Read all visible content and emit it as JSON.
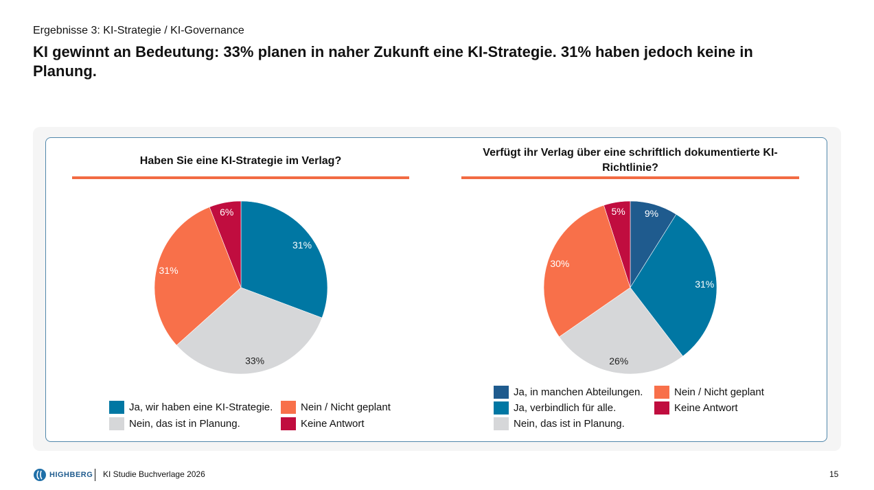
{
  "header": {
    "subtitle": "Ergebnisse 3: KI-Strategie / KI-Governance",
    "title": "KI gewinnt an Bedeutung: 33% planen in naher Zukunft eine KI-Strategie. 31% haben jedoch keine in Planung."
  },
  "colors": {
    "dark_blue": "#1f5b8e",
    "teal": "#0077a3",
    "grey": "#d6d7d9",
    "orange": "#f8704a",
    "red": "#c00d3f",
    "rule": "#f26b43"
  },
  "chart_data": [
    {
      "type": "pie",
      "title": "Haben Sie eine KI-Strategie im Verlag?",
      "start": "12 o'clock",
      "direction": "clockwise",
      "slices": [
        {
          "label": "Ja, wir haben eine KI-Strategie.",
          "value": 31,
          "display": "31%",
          "color": "#0077a3",
          "text_color": "#ffffff"
        },
        {
          "label": "Nein, das ist in Planung.",
          "value": 33,
          "display": "33%",
          "color": "#d6d7d9",
          "text_color": "#222222"
        },
        {
          "label": "Nein / Nicht geplant",
          "value": 31,
          "display": "31%",
          "color": "#f8704a",
          "text_color": "#ffffff"
        },
        {
          "label": "Keine Antwort",
          "value": 6,
          "display": "6%",
          "color": "#c00d3f",
          "text_color": "#ffffff"
        }
      ],
      "legend": "bottom"
    },
    {
      "type": "pie",
      "title": "Verfügt ihr Verlag über eine schriftlich dokumentierte KI-Richtlinie?",
      "start": "12 o'clock",
      "direction": "clockwise",
      "slices": [
        {
          "label": "Ja, in manchen Abteilungen.",
          "value": 9,
          "display": "9%",
          "color": "#1f5b8e",
          "text_color": "#ffffff"
        },
        {
          "label": "Ja, verbindlich für alle.",
          "value": 31,
          "display": "31%",
          "color": "#0077a3",
          "text_color": "#ffffff"
        },
        {
          "label": "Nein, das ist in Planung.",
          "value": 26,
          "display": "26%",
          "color": "#d6d7d9",
          "text_color": "#222222"
        },
        {
          "label": "Nein / Nicht geplant",
          "value": 30,
          "display": "30%",
          "color": "#f8704a",
          "text_color": "#ffffff"
        },
        {
          "label": "Keine Antwort",
          "value": 5,
          "display": "5%",
          "color": "#c00d3f",
          "text_color": "#ffffff"
        }
      ],
      "legend": "bottom"
    }
  ],
  "footer": {
    "logo": "HIGHBERG",
    "study": "KI Studie Buchverlage 2026",
    "page": "15"
  }
}
